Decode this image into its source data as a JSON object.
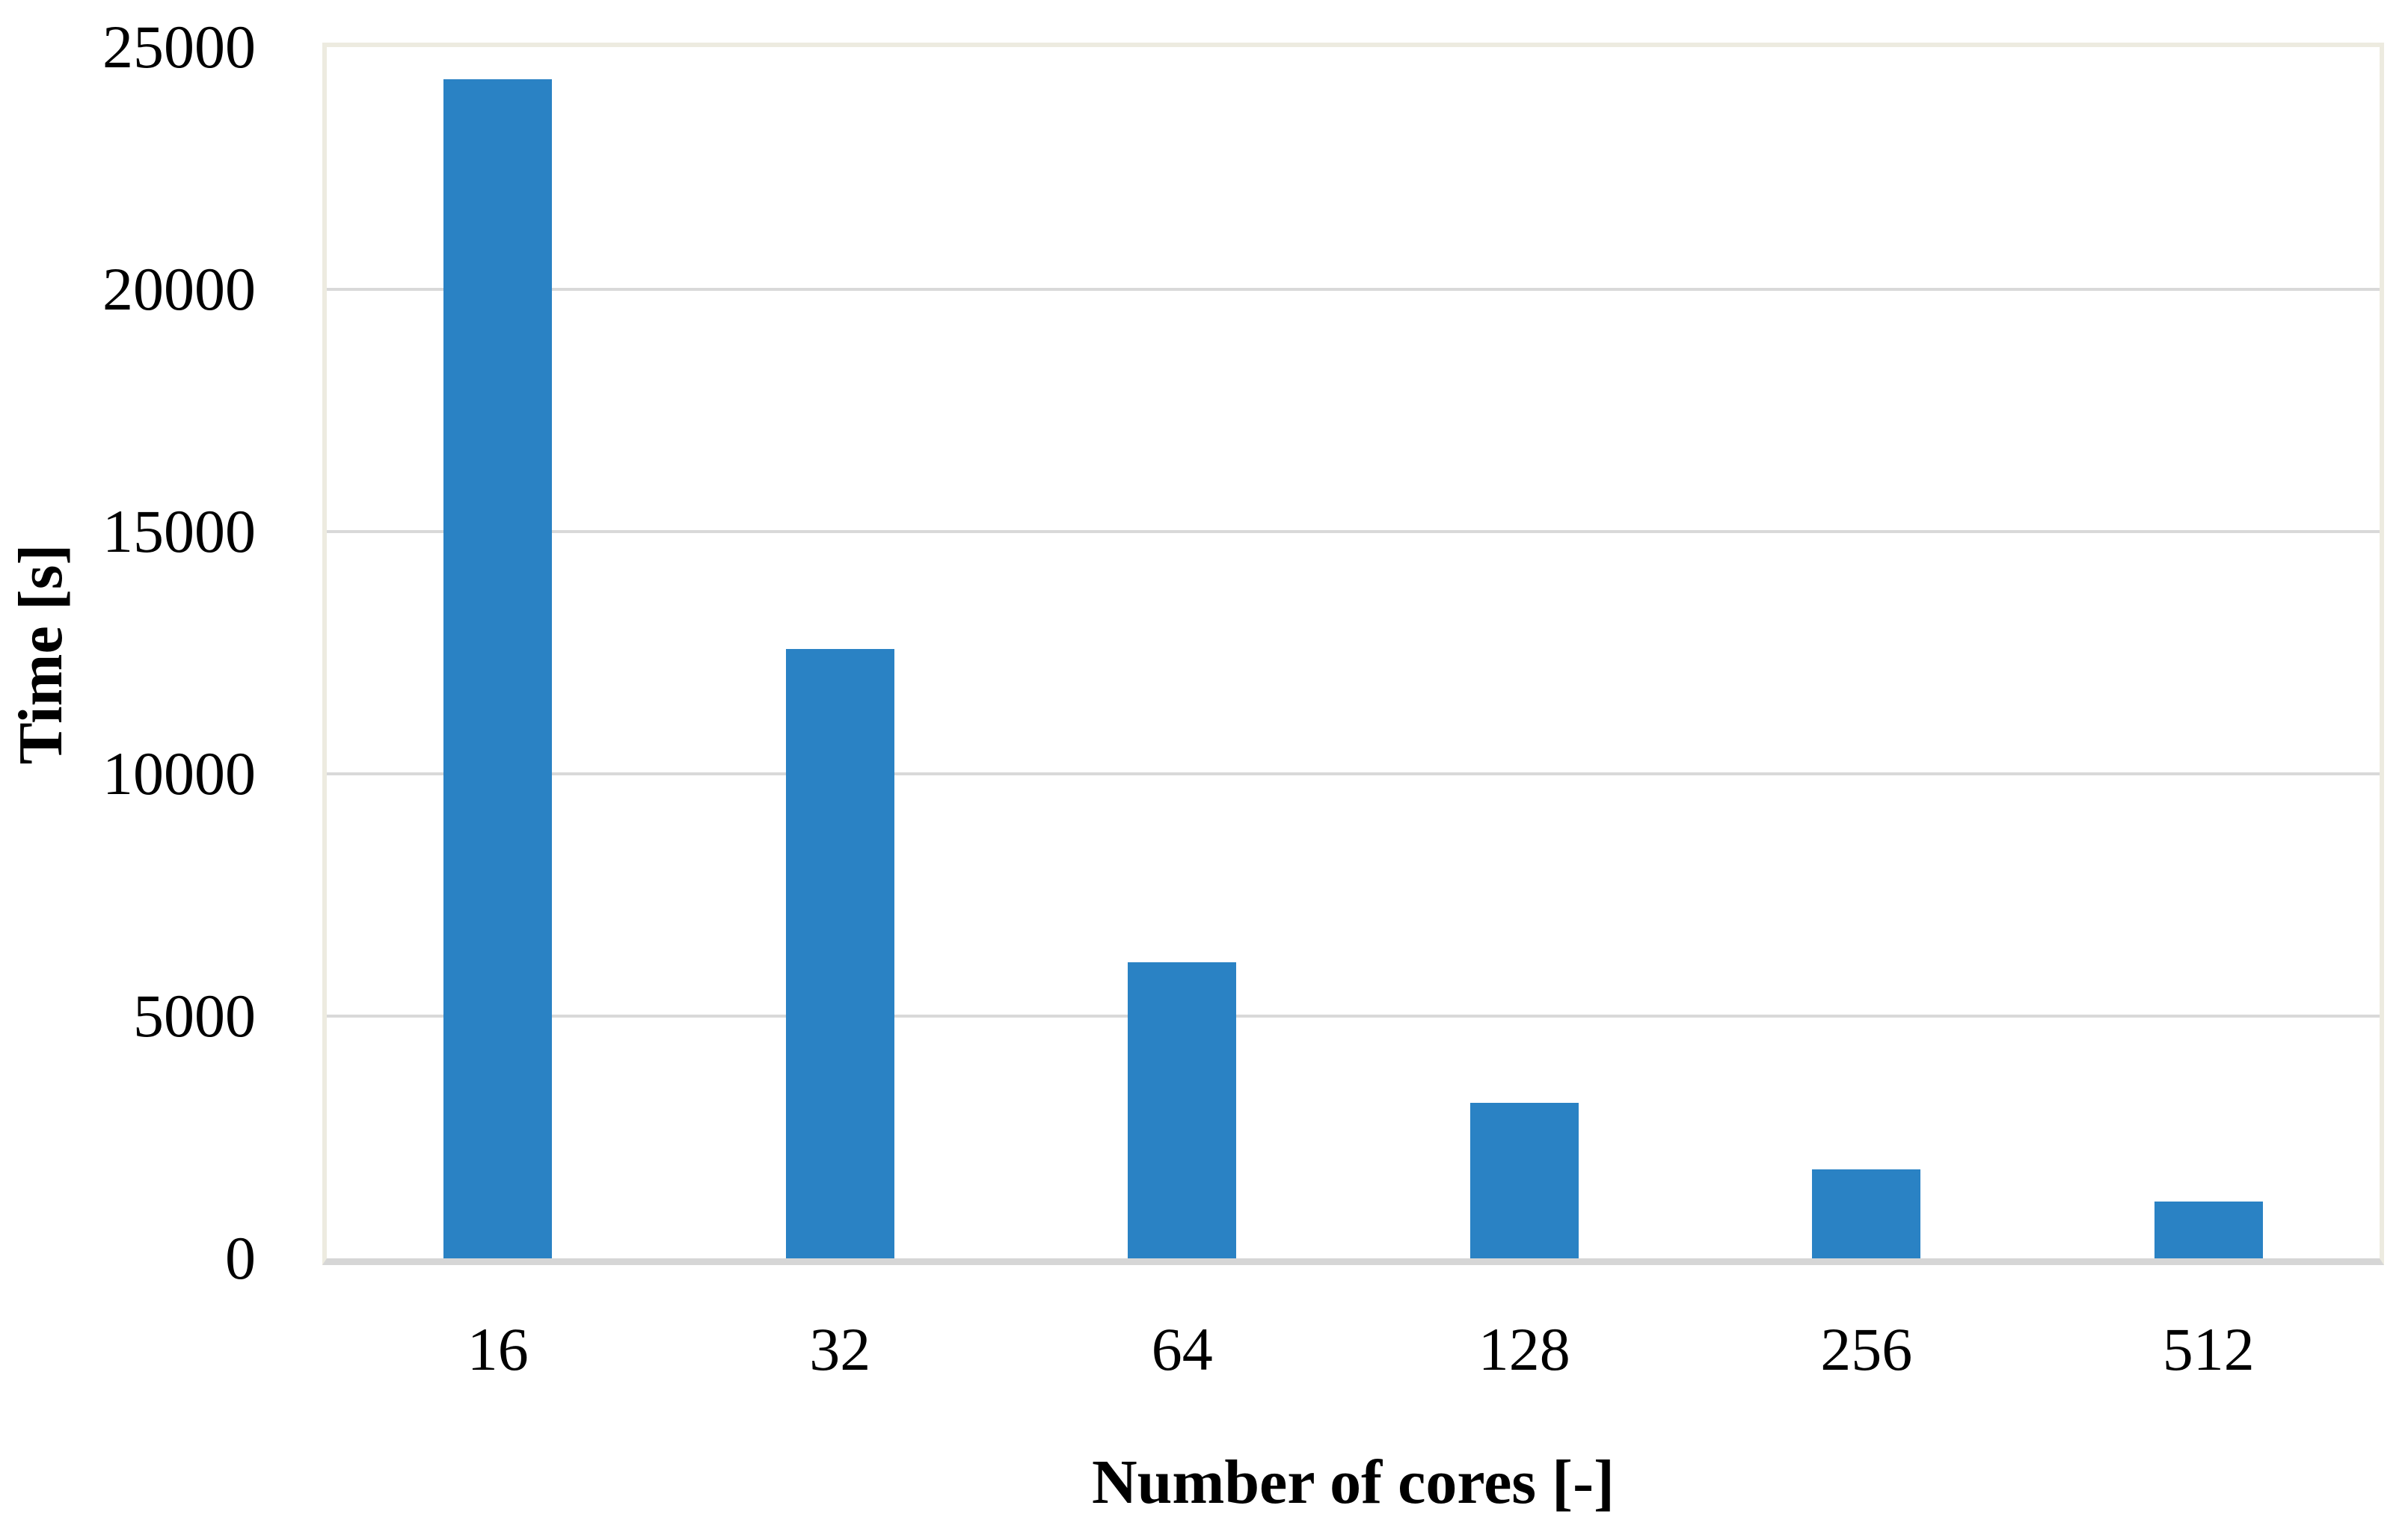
{
  "chart_data": {
    "type": "bar",
    "title": "",
    "xlabel": "Number of cores [-]",
    "ylabel": "Time [s]",
    "categories": [
      "16",
      "32",
      "64",
      "128",
      "256",
      "512"
    ],
    "values": [
      24340,
      12580,
      6110,
      3215,
      1830,
      1170
    ],
    "series_name": "Time",
    "ylim": [
      0,
      25000
    ],
    "yticks": [
      0,
      5000,
      10000,
      15000,
      20000,
      25000
    ],
    "grid": "horizontal",
    "legend": "none",
    "colors": {
      "bar": "#2A82C4",
      "gridline": "#D9D9D9",
      "axis_line": "#D6D6D6",
      "plot_border": "#EDEBE0",
      "text": "#000000",
      "background": "#FFFFFF"
    }
  }
}
